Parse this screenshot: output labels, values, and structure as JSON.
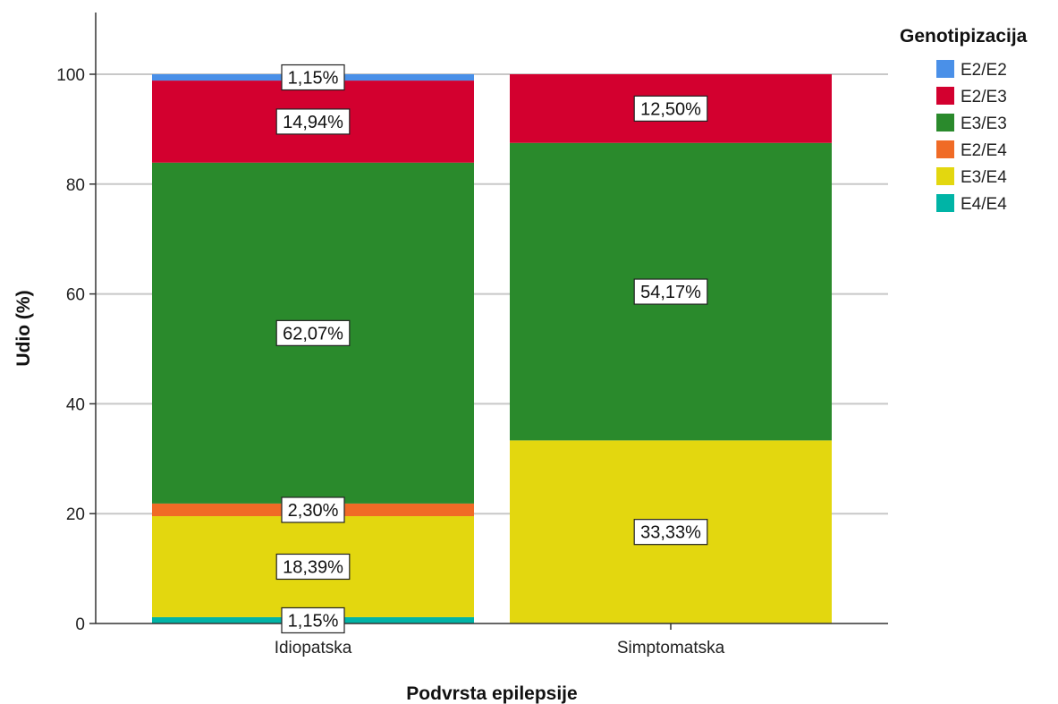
{
  "chart_data": {
    "type": "bar",
    "stacked": true,
    "xlabel": "Podvrsta epilepsije",
    "ylabel": "Udio (%)",
    "ylim": [
      0,
      110
    ],
    "yticks": [
      0,
      20,
      40,
      60,
      80,
      100
    ],
    "grid": true,
    "categories": [
      "Idiopatska",
      "Simptomatska"
    ],
    "legend": {
      "title": "Genotipizacija",
      "placement": "right"
    },
    "series": [
      {
        "name": "E4/E4",
        "color": "#00b4a6",
        "values": [
          1.15,
          0
        ],
        "labels": [
          "1,15%",
          ""
        ]
      },
      {
        "name": "E3/E4",
        "color": "#e3d70f",
        "values": [
          18.39,
          33.33
        ],
        "labels": [
          "18,39%",
          "33,33%"
        ]
      },
      {
        "name": "E2/E4",
        "color": "#f06b26",
        "values": [
          2.3,
          0
        ],
        "labels": [
          "2,30%",
          ""
        ]
      },
      {
        "name": "E3/E3",
        "color": "#2a8a2c",
        "values": [
          62.07,
          54.17
        ],
        "labels": [
          "62,07%",
          "54,17%"
        ]
      },
      {
        "name": "E2/E3",
        "color": "#d3002f",
        "values": [
          14.94,
          12.5
        ],
        "labels": [
          "14,94%",
          "12,50%"
        ]
      },
      {
        "name": "E2/E2",
        "color": "#4a90e8",
        "values": [
          1.15,
          0
        ],
        "labels": [
          "1,15%",
          ""
        ]
      }
    ],
    "legend_order": [
      "E2/E2",
      "E2/E3",
      "E3/E3",
      "E2/E4",
      "E3/E4",
      "E4/E4"
    ]
  }
}
